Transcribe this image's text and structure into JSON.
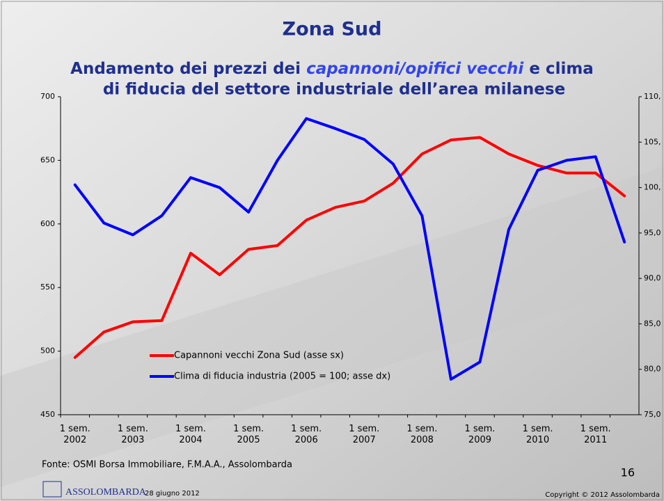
{
  "chart_data": {
    "type": "line",
    "title": "Zona Sud",
    "subtitle": [
      "Andamento dei prezzi dei",
      "capannoni/opifici vecchi",
      "e clima",
      "di fiducia del settore industriale dell’area milanese"
    ],
    "categories": [
      "1 sem.\n2002",
      null,
      "1 sem.\n2003",
      null,
      "1 sem.\n2004",
      null,
      "1 sem.\n2005",
      null,
      "1 sem.\n2006",
      null,
      "1 sem.\n2007",
      null,
      "1 sem.\n2008",
      null,
      "1 sem.\n2009",
      null,
      "1 sem.\n2010",
      null,
      "1 sem.\n2011",
      null
    ],
    "series": [
      {
        "name": "Capannoni vecchi Zona Sud (asse sx)",
        "color": "#ff0000",
        "values": [
          495,
          515,
          523,
          524,
          577,
          560,
          580,
          583,
          603,
          613,
          618,
          632,
          655,
          666,
          668,
          655,
          646,
          640,
          640,
          622
        ]
      },
      {
        "name": "Clima di fiducia industria (2005 = 100; asse dx)",
        "color": "#0000ff",
        "axis": "y2",
        "values": [
          100.3,
          96.1,
          94.8,
          96.9,
          101.1,
          100,
          97.3,
          103,
          107.6,
          106.5,
          105.3,
          102.6,
          96.9,
          78.9,
          80.8,
          95.4,
          101.9,
          103,
          103.4,
          94
        ]
      }
    ],
    "ylim": [
      450,
      700
    ],
    "yticks": [
      450,
      500,
      550,
      600,
      650,
      700
    ],
    "y2lim": [
      75,
      110
    ],
    "y2ticks": [
      {
        "value": 75,
        "label": "75,0"
      },
      {
        "value": 80,
        "label": "80,0"
      },
      {
        "value": 85,
        "label": "85,0"
      },
      {
        "value": 90,
        "label": "90,0"
      },
      {
        "value": 95,
        "label": "95,0"
      },
      {
        "value": 100,
        "label": "100,"
      },
      {
        "value": 105,
        "label": "105,"
      },
      {
        "value": 110,
        "label": "110,"
      }
    ],
    "grid": false
  },
  "footer": {
    "source": "Fonte: OSMI Borsa Immobiliare, F.M.A.A., Assolombarda",
    "page_number": "16",
    "logo": "ASSOLOMBARDA",
    "date": "28 giugno 2012",
    "copyright": "Copyright © 2012 Assolombarda"
  }
}
